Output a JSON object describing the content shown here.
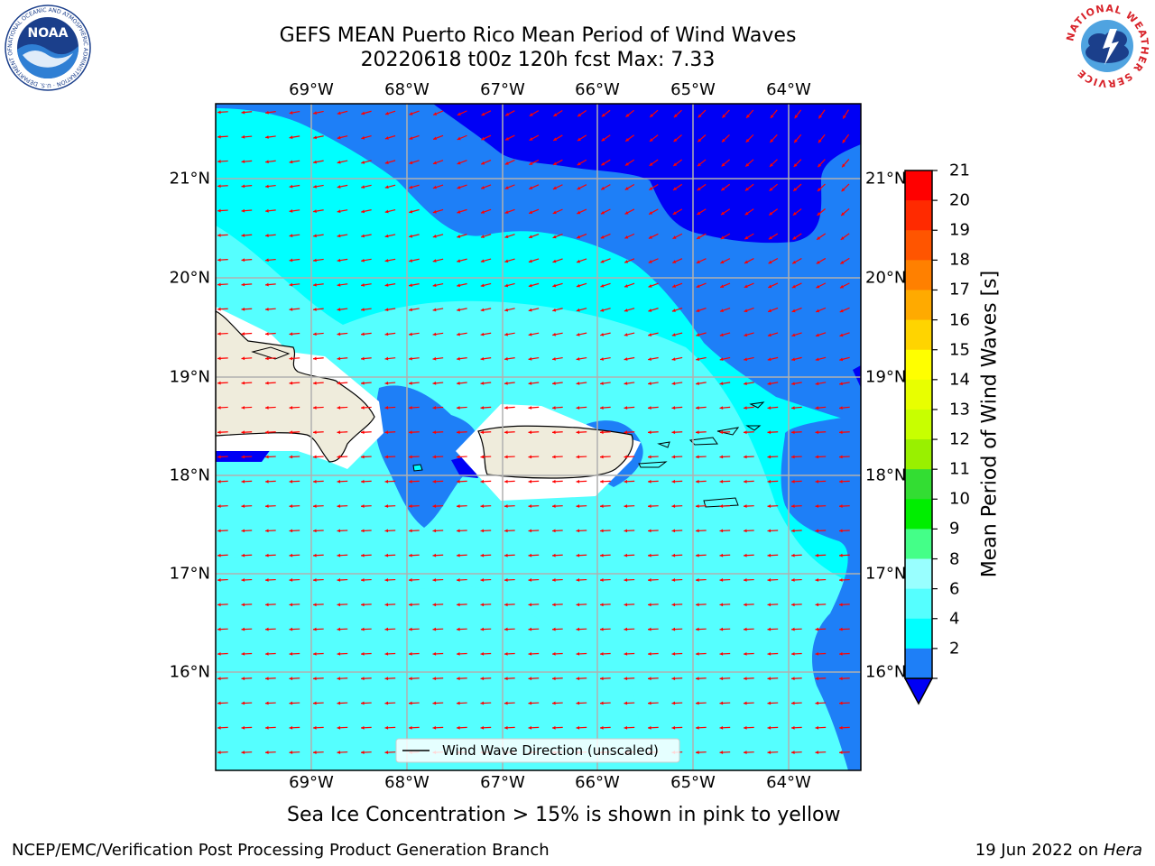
{
  "header": {
    "title_line1": "GEFS MEAN Puerto Rico Mean Period of Wind Waves",
    "title_line2": "20220618 t00z 120h fcst   Max: 7.33"
  },
  "logos": {
    "noaa_text": "NOAA",
    "noaa_ring": "NATIONAL OCEANIC AND ATMOSPHERIC ADMINISTRATION · U.S. DEPARTMENT OF COMMERCE",
    "nws_ring": "NATIONAL WEATHER SERVICE"
  },
  "map": {
    "lon_labels": [
      "69°W",
      "68°W",
      "67°W",
      "66°W",
      "65°W",
      "64°W"
    ],
    "lat_labels": [
      "21°N",
      "20°N",
      "19°N",
      "18°N",
      "17°N",
      "16°N"
    ],
    "legend": "Wind Wave Direction (unscaled)",
    "colors": {
      "band_2_4": "#1e7ff7",
      "band_4_6": "#00ffff",
      "band_6_8": "#55ffff",
      "below_2": "#0000f5",
      "land": "#efecdc",
      "arrows": "#ff0000"
    }
  },
  "colorbar": {
    "label": "Mean Period of Wind Waves [s]",
    "ticks": [
      "21",
      "20",
      "19",
      "18",
      "17",
      "16",
      "15",
      "14",
      "13",
      "12",
      "11",
      "10",
      "9",
      "8",
      "6",
      "4",
      "2"
    ],
    "colors": [
      "#ff0000",
      "#ff2a00",
      "#ff5500",
      "#ff8000",
      "#ffaa00",
      "#ffd400",
      "#ffff00",
      "#e8ff00",
      "#c8ff00",
      "#99f000",
      "#33dd33",
      "#00ee00",
      "#44ff88",
      "#99ffff",
      "#55ffff",
      "#00ffff",
      "#1e7ff7"
    ],
    "extend_below_color": "#0000f5"
  },
  "notes": {
    "sea_ice": "Sea Ice Concentration > 15% is shown in pink to yellow",
    "producer": "NCEP/EMC/Verification Post Processing Product Generation Branch",
    "date_prefix": "19 Jun 2022 on ",
    "machine": "Hera"
  }
}
